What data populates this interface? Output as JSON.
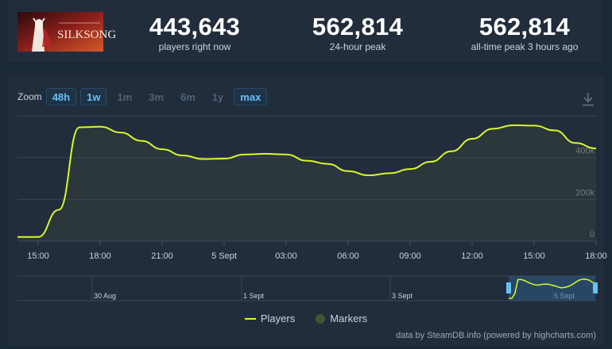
{
  "header": {
    "game_logo_text": "SILKSONG",
    "stats": [
      {
        "value": "443,643",
        "label": "players right now"
      },
      {
        "value": "562,814",
        "label": "24-hour peak"
      },
      {
        "value": "562,814",
        "label": "all-time peak 3 hours ago"
      }
    ]
  },
  "zoom": {
    "label": "Zoom",
    "options": [
      {
        "label": "48h",
        "active": true
      },
      {
        "label": "1w",
        "active": true
      },
      {
        "label": "1m",
        "active": false
      },
      {
        "label": "3m",
        "active": false
      },
      {
        "label": "6m",
        "active": false
      },
      {
        "label": "1y",
        "active": false
      },
      {
        "label": "max",
        "active": true
      }
    ]
  },
  "icons": {
    "download": "download-icon"
  },
  "colors": {
    "series": "#d7f82e",
    "markers": "#465633",
    "accent": "#66c0f4"
  },
  "legend": {
    "players": "Players",
    "markers": "Markers"
  },
  "credits": "data by SteamDB.info (powered by highcharts.com)",
  "chart_data": {
    "type": "line",
    "series": [
      {
        "name": "Players",
        "x": [
          "14:00",
          "15:00",
          "16:00",
          "17:00",
          "18:00",
          "19:00",
          "20:00",
          "21:00",
          "22:00",
          "23:00",
          "00:00",
          "01:00",
          "02:00",
          "03:00",
          "04:00",
          "05:00",
          "06:00",
          "07:00",
          "08:00",
          "09:00",
          "10:00",
          "11:00",
          "12:00",
          "13:00",
          "14:00",
          "15:00",
          "16:00",
          "17:00",
          "18:00"
        ],
        "values": [
          20000,
          20000,
          150000,
          545000,
          548000,
          520000,
          480000,
          440000,
          410000,
          393000,
          395000,
          415000,
          418000,
          415000,
          385000,
          370000,
          335000,
          315000,
          325000,
          345000,
          380000,
          430000,
          490000,
          538000,
          555000,
          553000,
          530000,
          470000,
          443643
        ]
      }
    ],
    "x_tick_labels": [
      "15:00",
      "18:00",
      "21:00",
      "5 Sept",
      "03:00",
      "06:00",
      "09:00",
      "12:00",
      "15:00",
      "18:00"
    ],
    "y_tick_labels": [
      "0",
      "200k",
      "400k"
    ],
    "ylim": [
      0,
      600000
    ],
    "grid": true,
    "navigator": {
      "labels": [
        "30 Aug",
        "1 Sept",
        "3 Sept",
        "5 Sept"
      ]
    },
    "legend_position": "bottom-center"
  }
}
